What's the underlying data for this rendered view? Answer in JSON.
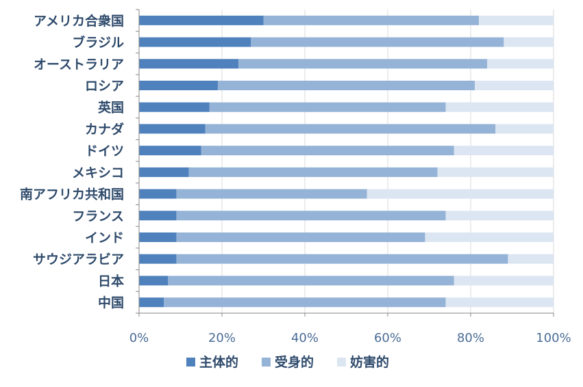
{
  "chart_data": {
    "type": "bar",
    "orientation": "horizontal",
    "stacked": "percent",
    "categories": [
      "アメリカ合衆国",
      "ブラジル",
      "オーストラリア",
      "ロシア",
      "英国",
      "カナダ",
      "ドイツ",
      "メキシコ",
      "南アフリカ共和国",
      "フランス",
      "インド",
      "サウジアラビア",
      "日本",
      "中国"
    ],
    "series": [
      {
        "name": "主体的",
        "color": "#4f81bd",
        "values": [
          30,
          27,
          24,
          19,
          17,
          16,
          15,
          12,
          9,
          9,
          9,
          9,
          7,
          6
        ]
      },
      {
        "name": "受身的",
        "color": "#95b3d7",
        "values": [
          52,
          61,
          60,
          62,
          57,
          70,
          61,
          60,
          46,
          65,
          60,
          80,
          69,
          68
        ]
      },
      {
        "name": "妨害的",
        "color": "#dce6f2",
        "values": [
          18,
          12,
          16,
          19,
          26,
          14,
          24,
          28,
          45,
          26,
          31,
          11,
          24,
          26
        ]
      }
    ],
    "xlim": [
      0,
      100
    ],
    "x_ticks": [
      "0%",
      "20%",
      "40%",
      "60%",
      "80%",
      "100%"
    ],
    "grid": true,
    "legend_position": "bottom"
  }
}
